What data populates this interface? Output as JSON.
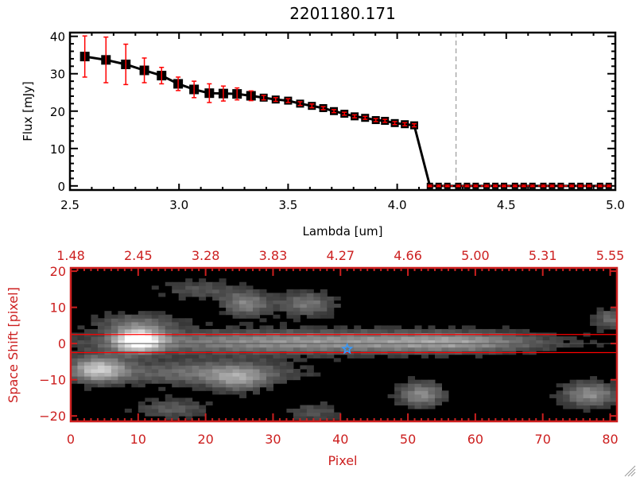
{
  "colors": {
    "axis_top": "#000000",
    "errorbar": "#ff0000",
    "axis_bottom": "#cc1f1f",
    "aperture_line": "#ff0000",
    "center_line": "#000000",
    "marker_star": "#3399ff",
    "cutoff_line": "#888888"
  },
  "chart_data": [
    {
      "type": "line",
      "title": "2201180.171",
      "xlabel": "Lambda [um]",
      "ylabel": "Flux [mJy]",
      "xlim": [
        2.5,
        5.0
      ],
      "ylim": [
        -1.1,
        41
      ],
      "xticks": [
        2.5,
        3.0,
        3.5,
        4.0,
        4.5,
        5.0
      ],
      "xtick_labels": [
        "2.5",
        "3.0",
        "3.5",
        "4.0",
        "4.5",
        "5.0"
      ],
      "yticks": [
        0,
        10,
        20,
        30,
        40
      ],
      "ytick_labels": [
        "0",
        "10",
        "20",
        "30",
        "40"
      ],
      "grid": false,
      "marker": "square",
      "vertical_dashed_line_x": 4.27,
      "series": [
        {
          "x": [
            2.568,
            2.665,
            2.756,
            2.841,
            2.92,
            2.996,
            3.069,
            3.139,
            3.203,
            3.266,
            3.33,
            3.388,
            3.443,
            3.5,
            3.555,
            3.609,
            3.661,
            3.71,
            3.758,
            3.805,
            3.853,
            3.902,
            3.944,
            3.989,
            4.035,
            4.078,
            4.15,
            4.19,
            4.23,
            4.28,
            4.32,
            4.36,
            4.41,
            4.45,
            4.49,
            4.54,
            4.58,
            4.62,
            4.67,
            4.71,
            4.75,
            4.8,
            4.84,
            4.88,
            4.93,
            4.97
          ],
          "y": [
            34.6,
            33.7,
            32.5,
            30.9,
            29.5,
            27.3,
            25.8,
            24.8,
            24.7,
            24.6,
            24.1,
            23.6,
            23.1,
            22.8,
            22.0,
            21.4,
            20.8,
            20.0,
            19.3,
            18.6,
            18.2,
            17.6,
            17.4,
            16.8,
            16.5,
            16.2,
            0,
            0,
            0,
            0,
            0,
            0,
            0,
            0,
            0,
            0,
            0,
            0,
            0,
            0,
            0,
            0,
            0,
            0,
            0,
            0
          ],
          "yerr": [
            5.5,
            6.1,
            5.4,
            3.3,
            2.2,
            1.8,
            2.2,
            2.5,
            2.0,
            1.6,
            1.3,
            0.6,
            0.5,
            0.5,
            0.5,
            0.5,
            0.4,
            0.4,
            0.4,
            0.4,
            0.4,
            0.4,
            0.4,
            0.4,
            0.4,
            0.4,
            0.2,
            0.2,
            0.2,
            0.2,
            0.2,
            0.2,
            0.2,
            0.2,
            0.2,
            0.2,
            0.2,
            0.2,
            0.2,
            0.2,
            0.2,
            0.2,
            0.2,
            0.2,
            0.2,
            0.2
          ]
        }
      ]
    },
    {
      "type": "heatmap",
      "xlabel": "Pixel",
      "ylabel": "Space Shift [pixel]",
      "xlim": [
        0,
        81
      ],
      "ylim": [
        -21.5,
        20.9
      ],
      "xticks": [
        0,
        10,
        20,
        30,
        40,
        50,
        60,
        70,
        80
      ],
      "xtick_labels": [
        "0",
        "10",
        "20",
        "30",
        "40",
        "50",
        "60",
        "70",
        "80"
      ],
      "yticks": [
        -20,
        -10,
        0,
        10,
        20
      ],
      "ytick_labels": [
        "−20",
        "−10",
        "0",
        "10",
        "20"
      ],
      "top_axis_tick_labels": [
        "1.48",
        "2.45",
        "3.28",
        "3.83",
        "4.27",
        "4.66",
        "5.00",
        "5.31",
        "5.55"
      ],
      "colormap": "grayscale",
      "aperture_lines_y": [
        2.5,
        -2.5
      ],
      "center_line_y": 0,
      "star_marker": {
        "x": 41,
        "y": -1.5
      },
      "components": [
        {
          "x": 10,
          "y": 1,
          "amp": 1.0,
          "sx": 2.5,
          "sy": 2.2
        },
        {
          "x": 35,
          "y": 0.5,
          "amp": 0.55,
          "sx": 22,
          "sy": 2.3
        },
        {
          "x": 58,
          "y": 0.5,
          "amp": 0.28,
          "sx": 8,
          "sy": 2.0
        },
        {
          "x": 4,
          "y": -7,
          "amp": 0.7,
          "sx": 3,
          "sy": 2.5
        },
        {
          "x": 20,
          "y": -8,
          "amp": 0.4,
          "sx": 10,
          "sy": 2.5
        },
        {
          "x": 25,
          "y": -10,
          "amp": 0.35,
          "sx": 3,
          "sy": 2.5
        },
        {
          "x": 26,
          "y": 11,
          "amp": 0.45,
          "sx": 2.5,
          "sy": 2.5
        },
        {
          "x": 35,
          "y": 11,
          "amp": 0.4,
          "sx": 3,
          "sy": 2.5
        },
        {
          "x": 19,
          "y": 15,
          "amp": 0.25,
          "sx": 4,
          "sy": 2
        },
        {
          "x": 52,
          "y": -14,
          "amp": 0.5,
          "sx": 2.5,
          "sy": 2.5
        },
        {
          "x": 77,
          "y": -14,
          "amp": 0.5,
          "sx": 3,
          "sy": 2.5
        },
        {
          "x": 80,
          "y": 7,
          "amp": 0.35,
          "sx": 1.8,
          "sy": 2
        },
        {
          "x": 15,
          "y": -18,
          "amp": 0.3,
          "sx": 4,
          "sy": 2
        },
        {
          "x": 36,
          "y": -19,
          "amp": 0.25,
          "sx": 3,
          "sy": 2
        },
        {
          "x": 10,
          "y": 6,
          "amp": 0.3,
          "sx": 5,
          "sy": 2
        }
      ]
    }
  ]
}
